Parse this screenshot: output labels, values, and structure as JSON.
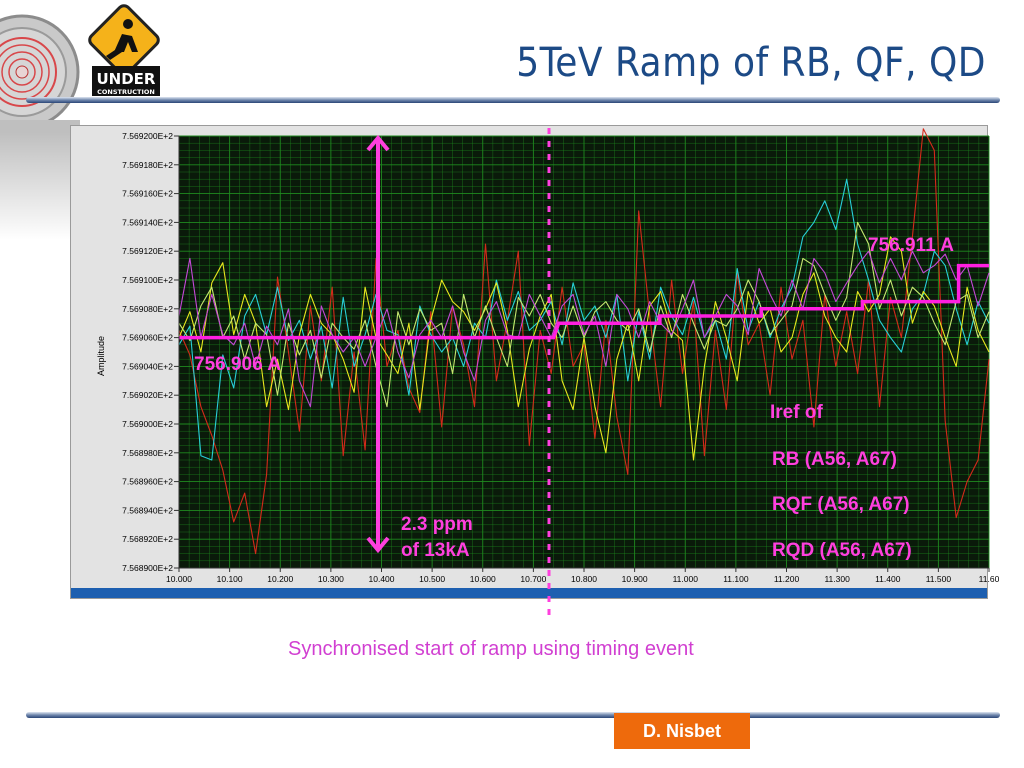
{
  "slide": {
    "title": "5TeV Ramp of RB, QF, QD",
    "caption": "Synchronised start of ramp using timing event",
    "author": "D. Nisbet",
    "logo_text": [
      "UNDER",
      "CONSTRUCTION"
    ]
  },
  "annotations": {
    "start_value": "756.906 A",
    "end_value": "756.911 A",
    "span_label": [
      "2.3 ppm",
      "of 13kA"
    ],
    "legend_lines": [
      "Iref of",
      "RB (A56, A67)",
      "RQF (A56, A67)",
      "RQD (A56, A67)"
    ]
  },
  "chart_data": {
    "type": "line",
    "ylabel": "Amplitude",
    "xlabel": "",
    "xlim": [
      10.0,
      11.6
    ],
    "ylim": [
      756.89,
      756.92
    ],
    "x_ticks": [
      "10.000",
      "10.100",
      "10.200",
      "10.300",
      "10.400",
      "10.500",
      "10.600",
      "10.700",
      "10.800",
      "10.900",
      "11.000",
      "11.100",
      "11.200",
      "11.300",
      "11.400",
      "11.500",
      "11.60"
    ],
    "y_ticks": [
      "7.569200E+2",
      "7.569180E+2",
      "7.569160E+2",
      "7.569140E+2",
      "7.569120E+2",
      "7.569100E+2",
      "7.569080E+2",
      "7.569060E+2",
      "7.569040E+2",
      "7.569020E+2",
      "7.569000E+2",
      "7.568980E+2",
      "7.568960E+2",
      "7.568940E+2",
      "7.568920E+2",
      "7.568900E+2"
    ],
    "grid": true,
    "background": "#0a1a0a",
    "grid_color": "#1f8a1f",
    "reference": {
      "name": "Iref",
      "color": "#ff1fe0",
      "steps": [
        [
          10.0,
          756.906
        ],
        [
          10.74,
          756.906
        ],
        [
          10.75,
          756.907
        ],
        [
          10.95,
          756.907
        ],
        [
          10.95,
          756.9075
        ],
        [
          11.15,
          756.9075
        ],
        [
          11.15,
          756.908
        ],
        [
          11.35,
          756.908
        ],
        [
          11.35,
          756.9085
        ],
        [
          11.54,
          756.9085
        ],
        [
          11.54,
          756.911
        ],
        [
          11.6,
          756.911
        ]
      ]
    },
    "series": [
      {
        "color": "#d42a1a",
        "values": [
          756.9065,
          756.9048,
          756.9012,
          756.8992,
          756.8968,
          756.8932,
          756.8952,
          756.891,
          756.8965,
          756.9102,
          756.905,
          756.8995,
          756.9082,
          756.903,
          756.9095,
          756.8978,
          756.905,
          756.8982,
          756.9115,
          756.904,
          756.9065,
          756.9025,
          756.9008,
          756.9078,
          756.8998,
          756.9082,
          756.9055,
          756.9012,
          756.9125,
          756.903,
          756.9072,
          756.912,
          756.8985,
          756.9065,
          756.9035,
          756.9095,
          756.904,
          756.9055,
          756.899,
          756.9072,
          756.9005,
          756.8965,
          756.9148,
          756.9075,
          756.9012,
          756.91,
          756.9035,
          756.9085,
          756.8978,
          756.9065,
          756.901,
          756.9105,
          756.9055,
          756.907,
          756.902,
          756.9095,
          756.9045,
          756.9072,
          756.8998,
          756.909,
          756.904,
          756.9078,
          756.9035,
          756.91,
          756.9012,
          756.9088,
          756.906,
          756.913,
          756.9205,
          756.919,
          756.9002,
          756.8935,
          756.896,
          756.8975,
          756.9045
        ]
      },
      {
        "color": "#28cfd8",
        "values": [
          756.9055,
          756.9068,
          756.8978,
          756.8975,
          756.9048,
          756.9025,
          756.9075,
          756.909,
          756.9062,
          756.9095,
          756.9058,
          756.9072,
          756.9045,
          756.9068,
          756.9025,
          756.9088,
          756.904,
          756.9062,
          756.909,
          756.9065,
          756.9062,
          756.902,
          756.9082,
          756.9062,
          756.905,
          756.906,
          756.904,
          756.907,
          756.906,
          756.91,
          756.9072,
          756.9092,
          756.9065,
          756.9072,
          756.9085,
          756.9055,
          756.9098,
          756.9072,
          756.9082,
          756.906,
          756.909,
          756.903,
          756.9078,
          756.9045,
          756.9095,
          756.9075,
          756.9062,
          756.9088,
          756.906,
          756.9072,
          756.9045,
          756.9108,
          756.9065,
          756.9085,
          756.906,
          756.908,
          756.9095,
          756.913,
          756.914,
          756.9155,
          756.9135,
          756.917,
          756.9125,
          756.91,
          756.9072,
          756.906,
          756.905,
          756.908,
          756.909,
          756.912,
          756.911,
          756.908,
          756.9055,
          756.9085,
          756.907
        ]
      },
      {
        "color": "#e8e81e",
        "values": [
          756.906,
          756.9078,
          756.905,
          756.9098,
          756.9112,
          756.9062,
          756.909,
          756.907,
          756.9012,
          756.9045,
          756.901,
          756.9062,
          756.909,
          756.907,
          756.9062,
          756.9045,
          756.9022,
          756.9095,
          756.906,
          756.9048,
          756.9035,
          756.907,
          756.901,
          756.9072,
          756.91,
          756.9085,
          756.9078,
          756.9065,
          756.908,
          756.9098,
          756.9065,
          756.9012,
          756.9052,
          756.9075,
          756.909,
          756.903,
          756.901,
          756.906,
          756.9012,
          756.898,
          756.9045,
          756.907,
          756.903,
          756.9082,
          756.9092,
          756.9065,
          756.9058,
          756.8975,
          756.904,
          756.9085,
          756.906,
          756.903,
          756.9092,
          756.907,
          756.908,
          756.905,
          756.906,
          756.909,
          756.9105,
          756.9075,
          756.906,
          756.905,
          756.9092,
          756.9078,
          756.909,
          756.913,
          756.912,
          756.907,
          756.9092,
          756.9082,
          756.906,
          756.904,
          756.9095,
          756.9065,
          756.905
        ]
      },
      {
        "color": "#c6e870",
        "values": [
          756.907,
          756.9058,
          756.9082,
          756.9095,
          756.906,
          756.9075,
          756.9045,
          756.907,
          756.9062,
          756.902,
          756.907,
          756.9048,
          756.9065,
          756.9032,
          756.907,
          756.906,
          756.9052,
          756.9072,
          756.904,
          756.9012,
          756.9078,
          756.9055,
          756.908,
          756.9065,
          756.907,
          756.9035,
          756.909,
          756.906,
          756.9082,
          756.906,
          756.904,
          756.9088,
          756.9075,
          756.909,
          756.907,
          756.906,
          756.9082,
          756.906,
          756.9078,
          756.9085,
          756.9072,
          756.9065,
          756.908,
          756.905,
          756.9082,
          756.906,
          756.909,
          756.907,
          756.9052,
          756.9072,
          756.9068,
          756.908,
          756.91,
          756.9085,
          756.9062,
          756.9072,
          756.9082,
          756.9115,
          756.911,
          756.909,
          756.9072,
          756.9088,
          756.914,
          756.9125,
          756.908,
          756.91,
          756.9075,
          756.9095,
          756.9088,
          756.907,
          756.9055,
          756.9085,
          756.909,
          756.906,
          756.9078
        ]
      },
      {
        "color": "#c548d8",
        "values": [
          756.9075,
          756.9115,
          756.906,
          756.909,
          756.9062,
          756.9055,
          756.907,
          756.904,
          756.9068,
          756.9055,
          756.908,
          756.903,
          756.9012,
          756.9082,
          756.9062,
          756.905,
          756.906,
          756.904,
          756.906,
          756.908,
          756.905,
          756.9032,
          756.9062,
          756.9072,
          756.906,
          756.9082,
          756.905,
          756.903,
          756.9072,
          756.9085,
          756.9062,
          756.906,
          756.909,
          756.9075,
          756.906,
          756.9082,
          756.909,
          756.9062,
          756.9075,
          756.904,
          756.909,
          756.908,
          756.906,
          756.9085,
          756.907,
          756.9062,
          756.908,
          756.91,
          756.906,
          756.9075,
          756.909,
          756.9082,
          756.9062,
          756.9108,
          756.909,
          756.9075,
          756.91,
          756.908,
          756.9115,
          756.9105,
          756.9085,
          756.9098,
          756.911,
          756.912,
          756.9098,
          756.9115,
          756.91,
          756.912,
          756.9105,
          756.911,
          756.9118,
          756.91,
          756.911,
          756.9082,
          756.9105
        ]
      }
    ]
  }
}
